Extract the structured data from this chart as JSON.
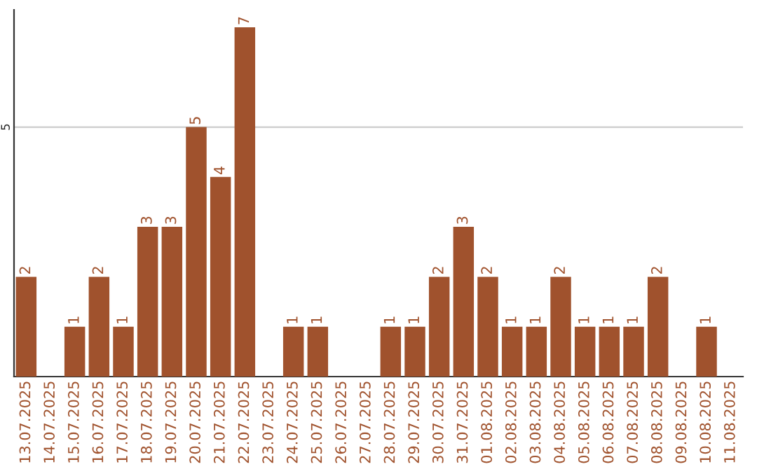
{
  "chart_data": {
    "type": "bar",
    "categories": [
      "13.07.2025",
      "14.07.2025",
      "15.07.2025",
      "16.07.2025",
      "17.07.2025",
      "18.07.2025",
      "19.07.2025",
      "20.07.2025",
      "21.07.2025",
      "22.07.2025",
      "23.07.2025",
      "24.07.2025",
      "25.07.2025",
      "26.07.2025",
      "27.07.2025",
      "28.07.2025",
      "29.07.2025",
      "30.07.2025",
      "31.07.2025",
      "01.08.2025",
      "02.08.2025",
      "03.08.2025",
      "04.08.2025",
      "05.08.2025",
      "06.08.2025",
      "07.08.2025",
      "08.08.2025",
      "09.08.2025",
      "10.08.2025",
      "11.08.2025"
    ],
    "values": [
      2,
      0,
      1,
      2,
      1,
      3,
      3,
      5,
      4,
      7,
      0,
      1,
      1,
      0,
      0,
      1,
      1,
      2,
      3,
      2,
      1,
      1,
      2,
      1,
      1,
      1,
      2,
      0,
      1,
      0
    ],
    "value_labels": [
      "2",
      null,
      "1",
      "2",
      "1",
      "3",
      "3",
      "5",
      "4",
      "7",
      null,
      "1",
      "1",
      null,
      null,
      "1",
      "1",
      "2",
      "3",
      "2",
      "1",
      "1",
      "2",
      "1",
      "1",
      "1",
      "2",
      null,
      "1",
      null
    ],
    "color": "#a0522d",
    "ylim": [
      0,
      7.35
    ],
    "yticks": [
      5
    ],
    "grid": "y"
  }
}
